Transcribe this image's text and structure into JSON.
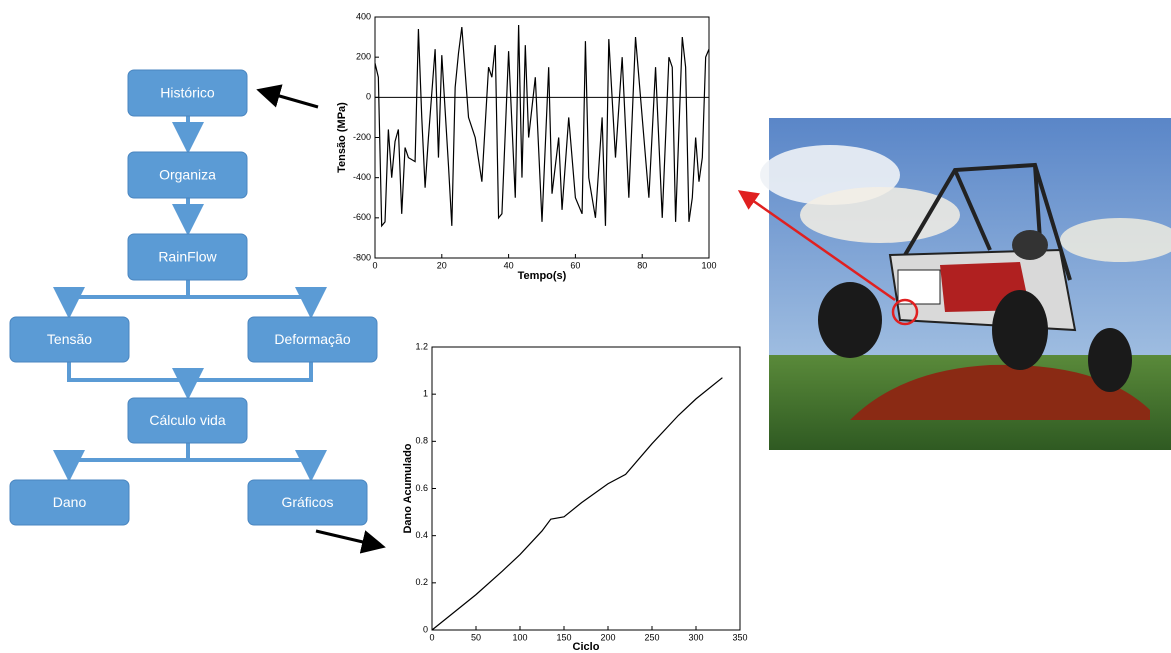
{
  "diagram": {
    "nodes": [
      {
        "label": "Histórico"
      },
      {
        "label": "Organiza"
      },
      {
        "label": "RainFlow"
      },
      {
        "label": "Tensão"
      },
      {
        "label": "Deformação"
      },
      {
        "label": "Cálculo vida"
      },
      {
        "label": "Dano"
      },
      {
        "label": "Gráficos"
      }
    ]
  },
  "chart_data": [
    {
      "type": "line",
      "x_label": "Tempo(s)",
      "y_label": "Tensão (MPa)",
      "x": [
        0,
        1,
        2,
        3,
        4,
        5,
        6,
        7,
        8,
        9,
        10,
        12,
        13,
        14,
        15,
        16,
        18,
        19,
        20,
        22,
        23,
        24,
        25,
        26,
        28,
        30,
        32,
        34,
        35,
        36,
        37,
        38,
        40,
        42,
        43,
        44,
        45,
        46,
        48,
        50,
        52,
        53,
        55,
        56,
        58,
        60,
        62,
        63,
        64,
        66,
        68,
        69,
        70,
        72,
        74,
        76,
        78,
        80,
        82,
        84,
        86,
        88,
        89,
        90,
        92,
        93,
        94,
        95,
        96,
        97,
        98,
        99,
        100
      ],
      "values": [
        170,
        100,
        -640,
        -620,
        -160,
        -400,
        -220,
        -160,
        -580,
        -250,
        -300,
        -320,
        340,
        -100,
        -450,
        -200,
        240,
        -300,
        210,
        -340,
        -640,
        50,
        220,
        350,
        -100,
        -200,
        -420,
        150,
        100,
        260,
        -600,
        -580,
        230,
        -500,
        360,
        -400,
        260,
        -200,
        100,
        -620,
        150,
        -480,
        -200,
        -560,
        -100,
        -500,
        -580,
        280,
        -400,
        -600,
        -100,
        -640,
        290,
        -300,
        200,
        -500,
        300,
        -100,
        -500,
        150,
        -600,
        200,
        150,
        -620,
        300,
        150,
        -620,
        -500,
        -200,
        -420,
        -300,
        200,
        240
      ],
      "color": "#000000",
      "reference_line": 0,
      "xlim": [
        0,
        100
      ],
      "xticks": [
        0,
        20,
        40,
        60,
        80,
        100
      ],
      "ylim": [
        -800,
        400
      ],
      "yticks": [
        -800,
        -600,
        -400,
        -200,
        0,
        200,
        400
      ]
    },
    {
      "type": "line",
      "x_label": "Ciclo",
      "y_label": "Dano Acumulado",
      "x": [
        0,
        20,
        50,
        80,
        100,
        125,
        135,
        150,
        170,
        200,
        220,
        250,
        280,
        300,
        330
      ],
      "values": [
        0,
        0.06,
        0.15,
        0.25,
        0.32,
        0.42,
        0.47,
        0.48,
        0.54,
        0.62,
        0.66,
        0.79,
        0.91,
        0.98,
        1.07
      ],
      "color": "#000000",
      "xlim": [
        0,
        350
      ],
      "xticks": [
        0,
        50,
        100,
        150,
        200,
        250,
        300,
        350
      ],
      "ylim": [
        0,
        1.2
      ],
      "yticks": [
        0,
        0.2,
        0.4,
        0.6,
        0.8,
        1,
        1.2
      ]
    }
  ]
}
